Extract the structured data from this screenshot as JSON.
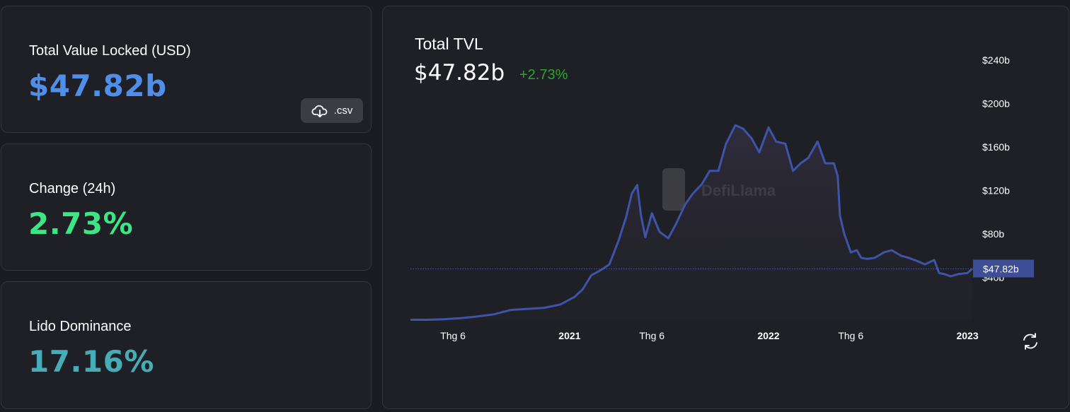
{
  "stats": {
    "tvl": {
      "label": "Total Value Locked (USD)",
      "value": "$47.82b",
      "color": "#4f8fea"
    },
    "change": {
      "label": "Change (24h)",
      "value": "2.73%",
      "color": "#3ee584"
    },
    "dominance": {
      "label": "Lido Dominance",
      "value": "17.16%",
      "color": "#46acb7"
    },
    "csv_button": {
      "label": ".csv",
      "icon": "cloud-download-icon"
    }
  },
  "chart_header": {
    "title": "Total TVL",
    "value": "$47.82b",
    "change": "+2.73%",
    "change_color": "#2da32d"
  },
  "watermark": "DefiLlama",
  "reload_icon": "refresh-icon",
  "chart_data": {
    "type": "area",
    "line_color": "#3d54a8",
    "y_ticks": [
      "$40b",
      "$80b",
      "$120b",
      "$160b",
      "$200b",
      "$240b"
    ],
    "y_tick_values": [
      40,
      80,
      120,
      160,
      200,
      240
    ],
    "ylim": [
      0,
      240
    ],
    "x_ticks": [
      "Thg 6",
      "2021",
      "Thg 6",
      "2022",
      "Thg 6",
      "2023"
    ],
    "x_tick_values": [
      "2020-06-01",
      "2021-01-01",
      "2021-06-01",
      "2022-01-01",
      "2022-06-01",
      "2023-01-01"
    ],
    "current_label": "$47.82b",
    "current_value": 47.82,
    "series": [
      {
        "x": [
          "2020-03-15",
          "2020-04-15",
          "2020-05-15",
          "2020-06-15",
          "2020-07-15",
          "2020-08-15",
          "2020-09-15",
          "2020-10-15",
          "2020-11-15",
          "2020-12-15",
          "2021-01-10",
          "2021-01-25",
          "2021-02-10",
          "2021-02-25",
          "2021-03-15",
          "2021-04-01",
          "2021-04-15",
          "2021-04-25",
          "2021-05-05",
          "2021-05-12",
          "2021-05-20",
          "2021-06-01",
          "2021-06-15",
          "2021-07-01",
          "2021-07-15",
          "2021-08-01",
          "2021-08-15",
          "2021-09-01",
          "2021-09-15",
          "2021-10-01",
          "2021-10-15",
          "2021-11-01",
          "2021-11-15",
          "2021-12-01",
          "2021-12-15",
          "2022-01-01",
          "2022-01-15",
          "2022-02-01",
          "2022-02-15",
          "2022-03-01",
          "2022-03-15",
          "2022-04-01",
          "2022-04-15",
          "2022-05-01",
          "2022-05-08",
          "2022-05-12",
          "2022-05-20",
          "2022-06-01",
          "2022-06-12",
          "2022-06-20",
          "2022-07-01",
          "2022-07-15",
          "2022-08-01",
          "2022-08-15",
          "2022-09-01",
          "2022-09-15",
          "2022-10-01",
          "2022-10-15",
          "2022-11-01",
          "2022-11-10",
          "2022-11-20",
          "2022-12-01",
          "2022-12-15",
          "2023-01-01",
          "2023-01-10"
        ],
        "y": [
          1,
          1,
          1.5,
          2.5,
          4,
          6,
          10,
          11,
          12,
          15,
          22,
          29,
          42,
          46,
          52,
          74,
          96,
          117,
          125,
          97,
          77,
          99,
          82,
          76,
          89,
          107,
          117,
          126,
          138,
          138,
          163,
          180,
          177,
          168,
          155,
          178,
          165,
          163,
          138,
          145,
          150,
          165,
          145,
          145,
          133,
          97,
          80,
          63,
          65,
          58,
          57,
          58,
          63,
          65,
          60,
          58,
          55,
          52,
          56,
          44,
          43,
          41,
          43,
          44,
          48
        ]
      }
    ]
  }
}
